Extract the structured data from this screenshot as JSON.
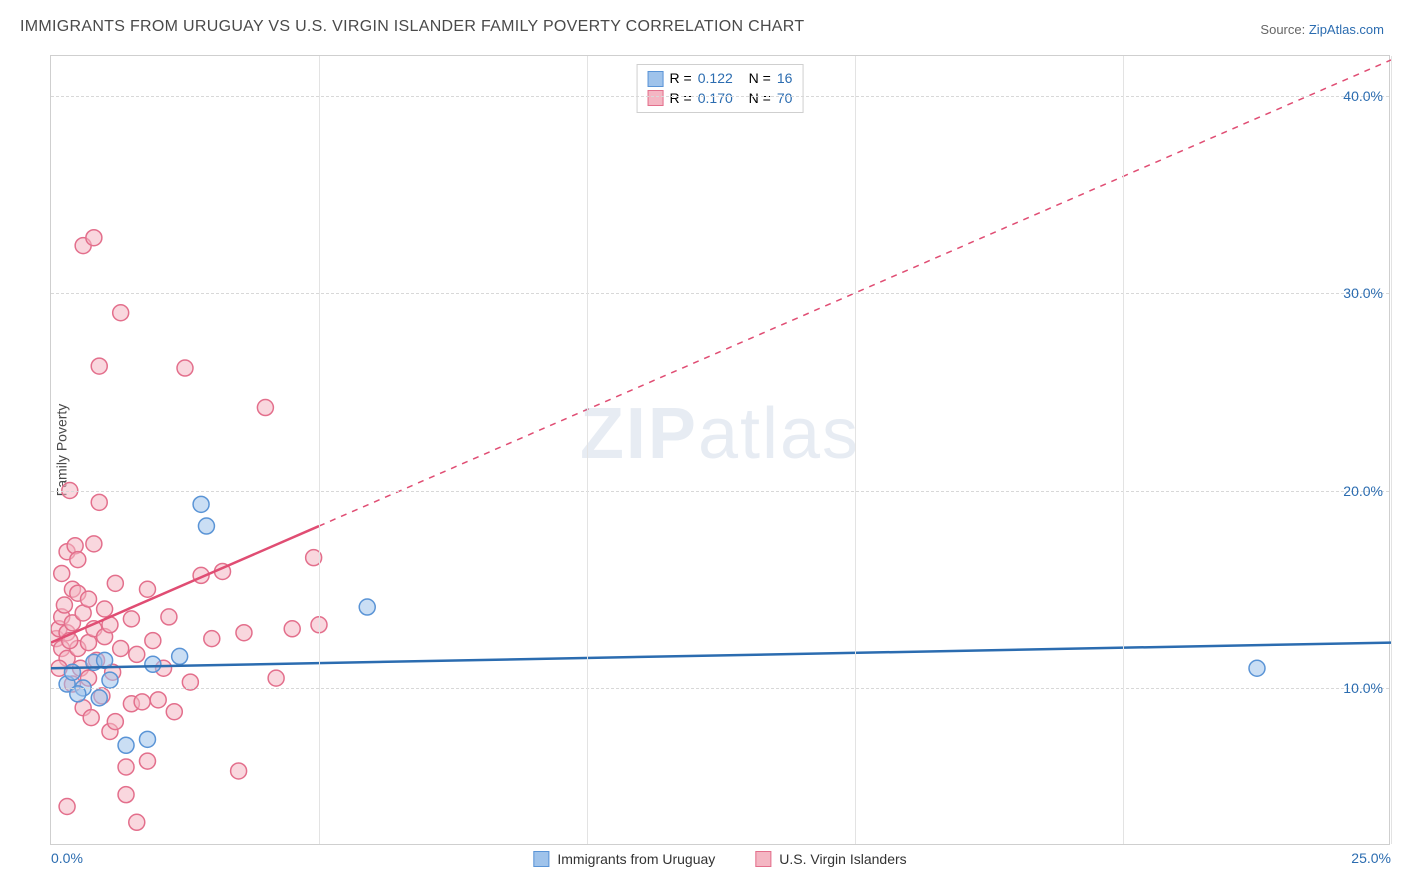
{
  "title": "IMMIGRANTS FROM URUGUAY VS U.S. VIRGIN ISLANDER FAMILY POVERTY CORRELATION CHART",
  "source": {
    "label": "Source:",
    "link_text": "ZipAtlas.com"
  },
  "y_axis": {
    "label": "Family Poverty"
  },
  "watermark": {
    "prefix": "ZIP",
    "suffix": "atlas"
  },
  "chart": {
    "type": "scatter",
    "background_color": "#ffffff",
    "grid_color": "#d8d8d8",
    "axis_color": "#cfcfcf",
    "tick_color": "#2b6cb0",
    "xlim": [
      0,
      25
    ],
    "ylim": [
      2,
      42
    ],
    "x_ticks": [
      0.0,
      25.0
    ],
    "x_tick_labels": [
      "0.0%",
      "25.0%"
    ],
    "x_gridlines": [
      5,
      10,
      15,
      20,
      25
    ],
    "y_ticks": [
      10.0,
      20.0,
      30.0,
      40.0
    ],
    "y_tick_labels": [
      "10.0%",
      "20.0%",
      "30.0%",
      "40.0%"
    ],
    "marker_radius": 8,
    "marker_opacity": 0.55,
    "marker_stroke_width": 1.5,
    "line_width": 2.5,
    "dash_pattern": "6 6",
    "title_fontsize": 16,
    "label_fontsize": 14,
    "tick_fontsize": 14,
    "series": [
      {
        "name": "Immigrants from Uruguay",
        "legend_key": "uruguay",
        "color_fill": "#9fc3eb",
        "color_stroke": "#5a94d6",
        "line_color": "#2b6cb0",
        "R": "0.122",
        "N": "16",
        "trend": {
          "x1": 0,
          "y1": 11.0,
          "x2": 25,
          "y2": 12.3,
          "dashed": false,
          "extend": true
        },
        "points": [
          [
            0.3,
            10.2
          ],
          [
            0.4,
            10.8
          ],
          [
            0.6,
            10.0
          ],
          [
            0.8,
            11.3
          ],
          [
            0.9,
            9.5
          ],
          [
            1.0,
            11.4
          ],
          [
            1.4,
            7.1
          ],
          [
            1.8,
            7.4
          ],
          [
            1.9,
            11.2
          ],
          [
            2.4,
            11.6
          ],
          [
            2.8,
            19.3
          ],
          [
            2.9,
            18.2
          ],
          [
            5.9,
            14.1
          ],
          [
            0.5,
            9.7
          ],
          [
            1.1,
            10.4
          ],
          [
            22.5,
            11.0
          ]
        ]
      },
      {
        "name": "U.S. Virgin Islanders",
        "legend_key": "virgin",
        "color_fill": "#f4b6c3",
        "color_stroke": "#e36f8c",
        "line_color": "#e04d73",
        "R": "0.170",
        "N": "70",
        "trend": {
          "x1": 0,
          "y1": 12.3,
          "x2": 25,
          "y2": 41.8,
          "dashed_after_x": 5.0
        },
        "points": [
          [
            0.1,
            12.5
          ],
          [
            0.15,
            13.0
          ],
          [
            0.2,
            13.6
          ],
          [
            0.2,
            12.0
          ],
          [
            0.2,
            15.8
          ],
          [
            0.25,
            14.2
          ],
          [
            0.3,
            12.8
          ],
          [
            0.3,
            11.5
          ],
          [
            0.3,
            16.9
          ],
          [
            0.35,
            20.0
          ],
          [
            0.4,
            15.0
          ],
          [
            0.4,
            10.2
          ],
          [
            0.4,
            13.3
          ],
          [
            0.45,
            17.2
          ],
          [
            0.5,
            12.0
          ],
          [
            0.5,
            14.8
          ],
          [
            0.5,
            16.5
          ],
          [
            0.55,
            11.0
          ],
          [
            0.6,
            13.8
          ],
          [
            0.6,
            9.0
          ],
          [
            0.6,
            32.4
          ],
          [
            0.7,
            10.5
          ],
          [
            0.7,
            12.3
          ],
          [
            0.7,
            14.5
          ],
          [
            0.75,
            8.5
          ],
          [
            0.8,
            13.0
          ],
          [
            0.8,
            17.3
          ],
          [
            0.8,
            32.8
          ],
          [
            0.85,
            11.4
          ],
          [
            0.9,
            19.4
          ],
          [
            0.9,
            26.3
          ],
          [
            0.95,
            9.6
          ],
          [
            1.0,
            12.6
          ],
          [
            1.0,
            14.0
          ],
          [
            1.1,
            7.8
          ],
          [
            1.1,
            13.2
          ],
          [
            1.15,
            10.8
          ],
          [
            1.2,
            15.3
          ],
          [
            1.2,
            8.3
          ],
          [
            1.3,
            12.0
          ],
          [
            1.3,
            29.0
          ],
          [
            1.4,
            6.0
          ],
          [
            1.4,
            4.6
          ],
          [
            1.5,
            9.2
          ],
          [
            1.5,
            13.5
          ],
          [
            1.6,
            11.7
          ],
          [
            1.6,
            3.2
          ],
          [
            1.7,
            9.3
          ],
          [
            1.8,
            15.0
          ],
          [
            1.8,
            6.3
          ],
          [
            1.9,
            12.4
          ],
          [
            2.0,
            9.4
          ],
          [
            2.1,
            11.0
          ],
          [
            2.2,
            13.6
          ],
          [
            2.3,
            8.8
          ],
          [
            2.5,
            26.2
          ],
          [
            2.6,
            10.3
          ],
          [
            2.8,
            15.7
          ],
          [
            3.0,
            12.5
          ],
          [
            3.2,
            15.9
          ],
          [
            3.5,
            5.8
          ],
          [
            3.6,
            12.8
          ],
          [
            4.0,
            24.2
          ],
          [
            4.2,
            10.5
          ],
          [
            4.5,
            13.0
          ],
          [
            4.9,
            16.6
          ],
          [
            5.0,
            13.2
          ],
          [
            0.3,
            4.0
          ],
          [
            0.15,
            11.0
          ],
          [
            0.35,
            12.4
          ]
        ]
      }
    ]
  },
  "legend_top": {
    "rows": [
      {
        "series": 0,
        "r_label": "R =",
        "n_label": "N ="
      },
      {
        "series": 1,
        "r_label": "R =",
        "n_label": "N ="
      }
    ]
  }
}
